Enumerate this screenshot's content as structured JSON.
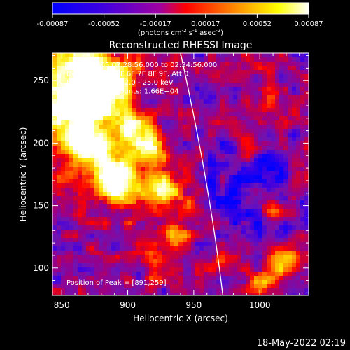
{
  "chart_data": {
    "type": "heatmap",
    "title": "Reconstructed RHESSI Image",
    "xlabel": "Heliocentric X (arcsec)",
    "ylabel": "Heliocentric Y (arcsec)",
    "xlim": [
      843,
      1037
    ],
    "ylim": [
      78,
      272
    ],
    "x_ticks": [
      850,
      900,
      950,
      1000
    ],
    "y_ticks": [
      100,
      150,
      200,
      250
    ],
    "colorbar": {
      "ticks": [
        "-0.00087",
        "-0.00052",
        "-0.00017",
        "0.00017",
        "0.00052",
        "0.00087"
      ],
      "range": [
        -0.00087,
        0.00087
      ],
      "colors": [
        "#0000ff",
        "#8000c0",
        "#ff0000",
        "#ffa000",
        "#ffff00",
        "#ffffff"
      ]
    },
    "annotations": [
      "18-Jan-2005 02:28:56.000 to 02:34:56.000",
      "Detectors: 3F 5F 6F 7F 8F 9F, Att 0",
      "Energy Range: 12.0 - 25.0 keV",
      "Clean     Total counts: 1.66E+04"
    ],
    "peak_label": "Position of Peak = [891,259]",
    "peak": [
      891,
      259
    ],
    "limb_curve": [
      [
        940,
        272
      ],
      [
        955,
        200
      ],
      [
        965,
        140
      ],
      [
        972,
        78
      ]
    ]
  },
  "units_label": "(photons cm",
  "units_sup1": "-2",
  "units_mid": " s",
  "units_sup2": "-1",
  "units_mid2": " asec",
  "units_sup3": "-2",
  "units_end": ")",
  "timestamp": "18-May-2022 02:19"
}
